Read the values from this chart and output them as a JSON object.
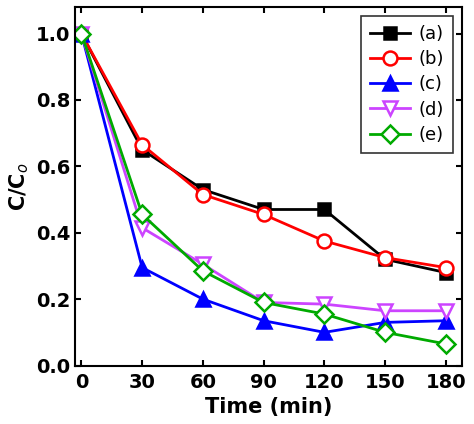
{
  "x": [
    0,
    30,
    60,
    90,
    120,
    150,
    180
  ],
  "series_order": [
    "a",
    "b",
    "c",
    "d",
    "e"
  ],
  "series": {
    "a": {
      "y": [
        1.0,
        0.65,
        0.53,
        0.47,
        0.47,
        0.32,
        0.28
      ],
      "color": "#000000",
      "marker": "s",
      "label": "(a)",
      "markersize": 9,
      "markerfacecolor": "#000000",
      "linestyle": "-",
      "linewidth": 2.0
    },
    "b": {
      "y": [
        1.0,
        0.665,
        0.515,
        0.455,
        0.375,
        0.325,
        0.295
      ],
      "color": "#ff0000",
      "marker": "o",
      "label": "(b)",
      "markersize": 10,
      "markerfacecolor": "#ffffff",
      "linestyle": "-",
      "linewidth": 2.0
    },
    "c": {
      "y": [
        1.0,
        0.295,
        0.2,
        0.135,
        0.1,
        0.13,
        0.135
      ],
      "color": "#0000ff",
      "marker": "^",
      "label": "(c)",
      "markersize": 10,
      "markerfacecolor": "#0000ff",
      "linestyle": "-",
      "linewidth": 2.0
    },
    "d": {
      "y": [
        1.0,
        0.415,
        0.305,
        0.19,
        0.185,
        0.165,
        0.165
      ],
      "color": "#cc44ff",
      "marker": "v",
      "label": "(d)",
      "markersize": 10,
      "markerfacecolor": "#ffffff",
      "linestyle": "-",
      "linewidth": 2.0
    },
    "e": {
      "y": [
        1.0,
        0.455,
        0.285,
        0.19,
        0.155,
        0.1,
        0.065
      ],
      "color": "#00aa00",
      "marker": "D",
      "label": "(e)",
      "markersize": 9,
      "markerfacecolor": "#ffffff",
      "linestyle": "-",
      "linewidth": 2.0
    }
  },
  "xlabel": "Time (min)",
  "ylabel": "C/C$_o$",
  "xlim": [
    -3,
    188
  ],
  "ylim": [
    0.0,
    1.08
  ],
  "xticks": [
    0,
    30,
    60,
    90,
    120,
    150,
    180
  ],
  "yticks": [
    0.0,
    0.2,
    0.4,
    0.6,
    0.8,
    1.0
  ],
  "legend_loc": "upper right",
  "xlabel_fontsize": 15,
  "ylabel_fontsize": 15,
  "tick_fontsize": 14,
  "legend_fontsize": 13
}
